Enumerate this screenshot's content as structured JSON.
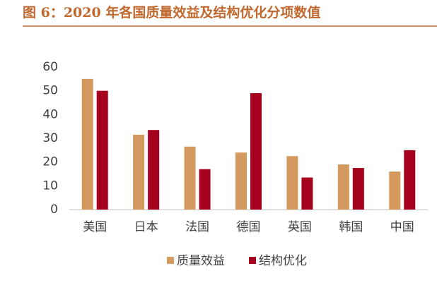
{
  "chart_data": {
    "type": "bar",
    "title": "图 6：2020 年各国质量效益及结构优化分项数值",
    "categories": [
      "美国",
      "日本",
      "法国",
      "德国",
      "英国",
      "韩国",
      "中国"
    ],
    "series": [
      {
        "name": "质量效益",
        "color": "#d4995f",
        "values": [
          55,
          31.5,
          26.5,
          24,
          22.5,
          19,
          16
        ]
      },
      {
        "name": "结构优化",
        "color": "#a5001e",
        "values": [
          50,
          33.5,
          17,
          49,
          13.5,
          17.5,
          25
        ]
      }
    ],
    "ylim": [
      0,
      60
    ],
    "yticks": [
      0,
      10,
      20,
      30,
      40,
      50,
      60
    ],
    "grid": false
  }
}
